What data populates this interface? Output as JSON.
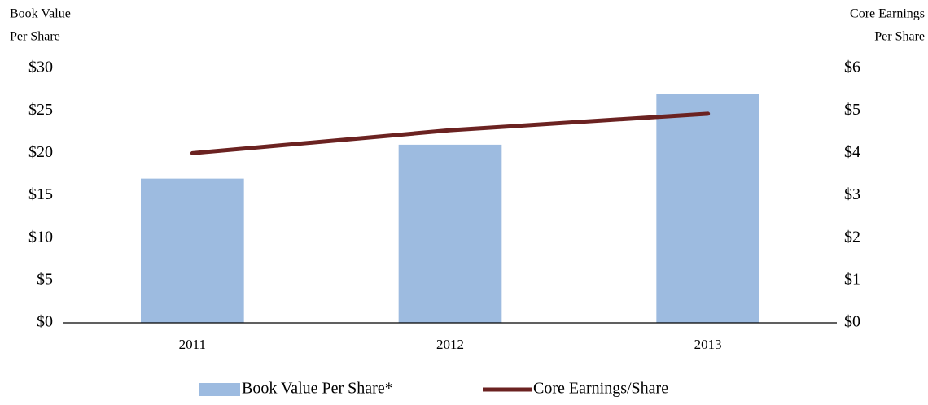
{
  "chart_data": {
    "type": "bar_line",
    "y_label": [
      "Book Value",
      "Per Share"
    ],
    "y2_label": [
      "Core Earnings",
      "Per Share"
    ],
    "categories": [
      "2011",
      "2012",
      "2013"
    ],
    "series": [
      {
        "name": "Book Value Per Share*",
        "type": "bar",
        "color": "#9dbbe0",
        "values": [
          17,
          21,
          27
        ]
      },
      {
        "name": "Core Earnings/Share",
        "type": "line",
        "axis": "y2",
        "color": "#6b2221",
        "values": [
          4.0,
          4.54,
          4.93
        ]
      }
    ],
    "ylim": [
      0,
      30
    ],
    "yticks": [
      {
        "value": 0,
        "label": "$0"
      },
      {
        "value": 5,
        "label": "$5"
      },
      {
        "value": 10,
        "label": "$10"
      },
      {
        "value": 15,
        "label": "$15"
      },
      {
        "value": 20,
        "label": "$20"
      },
      {
        "value": 25,
        "label": "$25"
      },
      {
        "value": 30,
        "label": "$30"
      }
    ],
    "y2lim": [
      0,
      6
    ],
    "y2ticks": [
      {
        "value": 0,
        "label": "$0"
      },
      {
        "value": 1,
        "label": "$1"
      },
      {
        "value": 2,
        "label": "$2"
      },
      {
        "value": 3,
        "label": "$3"
      },
      {
        "value": 4,
        "label": "$4"
      },
      {
        "value": 5,
        "label": "$5"
      },
      {
        "value": 6,
        "label": "$6"
      }
    ],
    "legend": "bottom"
  }
}
